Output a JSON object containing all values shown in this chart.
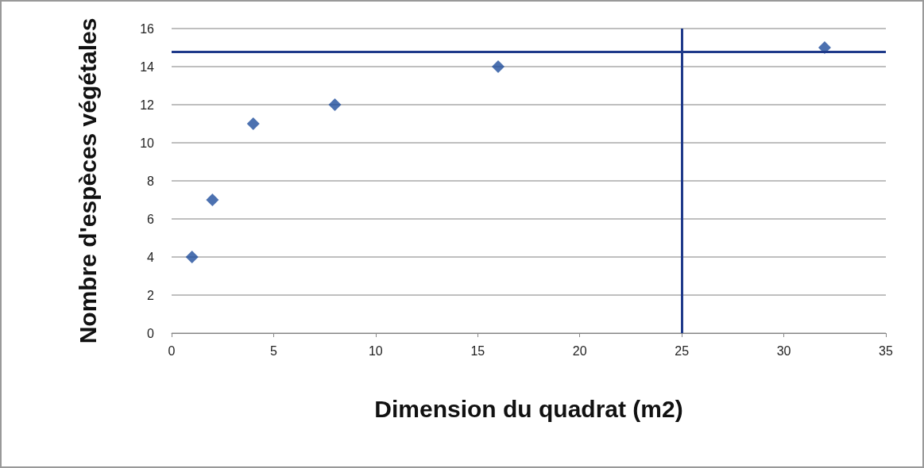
{
  "chart_data": {
    "type": "scatter",
    "xlabel": "Dimension du quadrat (m2)",
    "ylabel": "Nombre d'espèces végétales",
    "x": [
      1,
      2,
      4,
      8,
      16,
      32
    ],
    "values": [
      4,
      7,
      11,
      12,
      14,
      15
    ],
    "color": "#1f4e9c",
    "marker": "diamond",
    "xlim": [
      0,
      35
    ],
    "xticks": [
      0,
      5,
      10,
      15,
      20,
      25,
      30,
      35
    ],
    "ylim": [
      0,
      16
    ],
    "yticks": [
      0,
      2,
      4,
      6,
      8,
      10,
      12,
      14,
      16
    ],
    "grid": "y",
    "ref_lines": [
      {
        "axis": "y",
        "value": 14.8,
        "color": "#1f3a8a"
      },
      {
        "axis": "x",
        "value": 25,
        "color": "#1f3a8a"
      }
    ]
  }
}
